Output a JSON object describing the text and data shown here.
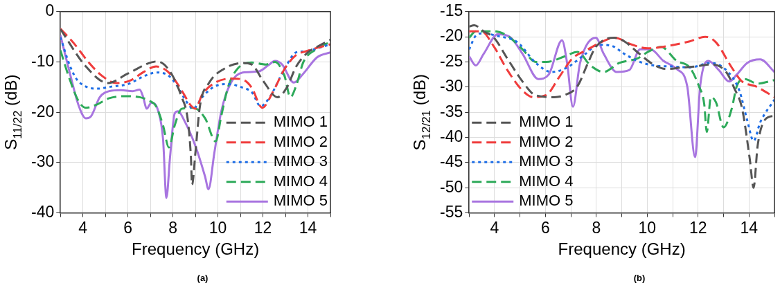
{
  "chart_data": [
    {
      "type": "line",
      "xlabel": "Frequency (GHz)",
      "ylabel": "S$_{11/22}$ (dB)",
      "xlim": [
        3,
        15
      ],
      "ylim": [
        -40,
        0
      ],
      "xticks": [
        {
          "value": 3,
          "label": null
        },
        4,
        {
          "value": 5,
          "label": null
        },
        6,
        {
          "value": 7,
          "label": null
        },
        8,
        {
          "value": 9,
          "label": null
        },
        10,
        {
          "value": 11,
          "label": null
        },
        12,
        {
          "value": 13,
          "label": null
        },
        14,
        {
          "value": 15,
          "label": null
        }
      ],
      "yticks": [
        -40,
        -30,
        -20,
        -10,
        0
      ],
      "grid": true,
      "legend": "bottom right",
      "annotations": [
        "(a)"
      ],
      "series": [
        {
          "name": "MIMO 1",
          "color": "#555555",
          "line_style": "dashed",
          "x": [
            3,
            4.13,
            5.12,
            6.0,
            7.3,
            7.87,
            8.39,
            8.65,
            8.8,
            8.85,
            9.0,
            9.2,
            9.6,
            10.26,
            11.1,
            11.5,
            12.0,
            12.65,
            13.06,
            13.48,
            14.0,
            14.4,
            15
          ],
          "values": [
            -3.5,
            -10.9,
            -14.2,
            -12.3,
            -9.9,
            -11.9,
            -17,
            -21.2,
            -29,
            -34.4,
            -28,
            -18.8,
            -14.2,
            -11.4,
            -10.2,
            -10.5,
            -13.7,
            -17,
            -15.1,
            -10.9,
            -8.1,
            -7,
            -5.6
          ]
        },
        {
          "name": "MIMO 2",
          "color": "#f03c3c",
          "line_style": "dashed",
          "x": [
            3,
            3.6,
            4.24,
            4.86,
            5.48,
            6.1,
            6.73,
            7.25,
            7.77,
            8.18,
            8.5,
            8.75,
            9.0,
            9.3,
            9.84,
            10.6,
            11.1,
            11.5,
            11.97,
            12.44,
            12.96,
            13.48,
            13.9,
            14.4,
            15
          ],
          "values": [
            -3.4,
            -6.3,
            -10,
            -12.8,
            -14.2,
            -13.7,
            -11.9,
            -10.9,
            -11.9,
            -14.2,
            -16.5,
            -18.4,
            -19.3,
            -16.5,
            -14.2,
            -13.3,
            -13.5,
            -15.1,
            -19.1,
            -16,
            -11.4,
            -8.6,
            -7.9,
            -7.2,
            -6.5
          ]
        },
        {
          "name": "MIMO 3",
          "color": "#1e6ee6",
          "line_style": "dotted",
          "x": [
            3,
            3.4,
            3.7,
            4.13,
            4.65,
            5.27,
            6.0,
            6.73,
            7.25,
            7.77,
            8.18,
            8.6,
            8.9,
            9.3,
            9.84,
            10.47,
            11.1,
            11.5,
            11.9,
            12.3,
            12.96,
            13.48,
            13.9,
            14.4,
            15
          ],
          "values": [
            -5.1,
            -10.5,
            -13.3,
            -14.9,
            -15.3,
            -14.9,
            -14.4,
            -12.8,
            -12.1,
            -12.6,
            -14.7,
            -17.9,
            -19.3,
            -17,
            -14.9,
            -14.4,
            -15.1,
            -16,
            -18.8,
            -17,
            -11.4,
            -8.1,
            -7.9,
            -7.3,
            -6.5
          ]
        },
        {
          "name": "MIMO 4",
          "color": "#2eaa5a",
          "line_style": "dashed",
          "x": [
            3,
            3.4,
            3.82,
            4.13,
            4.65,
            5.17,
            6.0,
            6.52,
            6.94,
            7.25,
            7.56,
            7.82,
            8.08,
            8.39,
            8.9,
            9.43,
            9.9,
            10.15,
            10.47,
            10.9,
            11.5,
            12.13,
            12.54,
            12.96,
            13.22,
            13.48,
            13.8,
            14.4,
            15
          ],
          "values": [
            -7.7,
            -13.3,
            -17.9,
            -19.1,
            -18.4,
            -17.2,
            -16.8,
            -17,
            -17.7,
            -18.8,
            -22.6,
            -27,
            -22.6,
            -19.3,
            -19.1,
            -21.2,
            -25.8,
            -20.7,
            -14.7,
            -11.2,
            -10.1,
            -10.5,
            -10,
            -12.8,
            -17,
            -14.7,
            -10,
            -7.4,
            -6
          ]
        },
        {
          "name": "MIMO 5",
          "color": "#a875e0",
          "line_style": "solid",
          "x": [
            3,
            3.4,
            3.82,
            4.13,
            4.34,
            4.75,
            5.17,
            5.69,
            6.21,
            6.52,
            6.68,
            6.83,
            7.04,
            7.35,
            7.56,
            7.71,
            7.87,
            8.08,
            8.23,
            8.5,
            9.0,
            9.43,
            9.58,
            9.84,
            10.15,
            10.57,
            11.1,
            11.8,
            12.23,
            12.54,
            12.85,
            13.37,
            13.8,
            14.4,
            15
          ],
          "values": [
            -4.7,
            -11.9,
            -18.8,
            -21.2,
            -20.9,
            -17,
            -15.8,
            -15.6,
            -15.8,
            -15.5,
            -17,
            -19.3,
            -18.1,
            -19.8,
            -25.3,
            -37,
            -29,
            -20.2,
            -19.8,
            -21.6,
            -26.7,
            -32.8,
            -35.3,
            -28.1,
            -19.8,
            -14.2,
            -12.1,
            -11.9,
            -10.7,
            -9.8,
            -10.5,
            -14.1,
            -12.3,
            -9.1,
            -8.1
          ]
        }
      ]
    },
    {
      "type": "line",
      "xlabel": "Frequency (GHz)",
      "ylabel": "S$_{12/21}$ (dB)",
      "xlim": [
        3,
        15
      ],
      "ylim": [
        -55,
        -15
      ],
      "xticks": [
        {
          "value": 3,
          "label": null
        },
        4,
        {
          "value": 5,
          "label": null
        },
        6,
        {
          "value": 7,
          "label": null
        },
        8,
        {
          "value": 9,
          "label": null
        },
        10,
        {
          "value": 11,
          "label": null
        },
        12,
        {
          "value": 13,
          "label": null
        },
        14,
        {
          "value": 15,
          "label": null
        }
      ],
      "yticks": [
        -55,
        -50,
        -45,
        -40,
        -35,
        -30,
        -25,
        -20,
        -15
      ],
      "grid": true,
      "legend": "bottom left",
      "annotations": [
        "(b)"
      ],
      "series": [
        {
          "name": "MIMO 1",
          "color": "#555555",
          "line_style": "dashed",
          "x": [
            3,
            3.2,
            3.57,
            3.98,
            4.5,
            5.1,
            5.6,
            6.34,
            6.75,
            7.26,
            7.67,
            7.98,
            8.7,
            9.1,
            9.6,
            10.24,
            10.75,
            11.37,
            11.88,
            12.5,
            13.1,
            13.42,
            13.73,
            14.03,
            14.18,
            14.34,
            14.64,
            15
          ],
          "values": [
            -18,
            -17.7,
            -18.9,
            -20.2,
            -24.3,
            -28.9,
            -31.6,
            -32,
            -31.6,
            -29.8,
            -25.2,
            -22,
            -20.2,
            -20.9,
            -23,
            -25.5,
            -26.4,
            -26.1,
            -25.9,
            -25.5,
            -27,
            -30.2,
            -34.3,
            -44.3,
            -50,
            -41.6,
            -36.4,
            -35.7
          ]
        },
        {
          "name": "MIMO 2",
          "color": "#f03c3c",
          "line_style": "dashed",
          "x": [
            3,
            3.47,
            3.98,
            4.5,
            5.1,
            5.52,
            6.03,
            6.54,
            7.06,
            7.67,
            8.18,
            8.7,
            9.42,
            10.03,
            10.85,
            11.67,
            12.29,
            12.7,
            13.32,
            13.73,
            14.24,
            15
          ],
          "values": [
            -18.9,
            -18.9,
            -22,
            -26.6,
            -30.7,
            -32,
            -31.6,
            -28,
            -24.3,
            -22.5,
            -21.1,
            -20.2,
            -21.6,
            -22.3,
            -21.8,
            -20.9,
            -20,
            -21.1,
            -26.1,
            -28.9,
            -29.8,
            -32
          ]
        },
        {
          "name": "MIMO 3",
          "color": "#1e6ee6",
          "line_style": "dotted",
          "x": [
            3,
            3.26,
            3.57,
            4.08,
            4.9,
            5.62,
            6.24,
            6.85,
            7.57,
            8.08,
            8.6,
            9.1,
            9.62,
            10.24,
            10.95,
            11.67,
            12.5,
            13.1,
            13.62,
            13.93,
            14.18,
            14.44,
            15
          ],
          "values": [
            -22.5,
            -19.8,
            -19.3,
            -19.8,
            -21.1,
            -25.2,
            -27,
            -26.1,
            -23.4,
            -21.6,
            -21.8,
            -23.4,
            -24.8,
            -25.7,
            -25.9,
            -26.1,
            -25.2,
            -26.6,
            -30.7,
            -36.6,
            -40.7,
            -37,
            -32.5
          ]
        },
        {
          "name": "MIMO 4",
          "color": "#2eaa5a",
          "line_style": "dashed",
          "x": [
            3,
            3.26,
            3.98,
            4.5,
            5.1,
            5.62,
            6.03,
            6.75,
            7.26,
            7.77,
            8.28,
            8.9,
            9.62,
            10.03,
            10.54,
            11.16,
            11.67,
            12.03,
            12.24,
            12.34,
            12.5,
            12.7,
            13.0,
            13.32,
            13.52,
            13.83,
            14.34,
            15
          ],
          "values": [
            -20.2,
            -18.9,
            -18.9,
            -19.8,
            -22.5,
            -25,
            -25,
            -23.9,
            -23,
            -25.7,
            -27,
            -25.2,
            -24.3,
            -23,
            -22,
            -24.8,
            -26.1,
            -29.8,
            -33.4,
            -38.9,
            -32,
            -33,
            -38,
            -34.3,
            -29.8,
            -28.4,
            -29.3,
            -28.6
          ]
        },
        {
          "name": "MIMO 5",
          "color": "#a875e0",
          "line_style": "solid",
          "x": [
            3,
            3.26,
            3.57,
            4.13,
            4.6,
            5.1,
            5.72,
            6.13,
            6.65,
            6.85,
            7.08,
            7.36,
            7.98,
            8.29,
            8.8,
            9.3,
            9.72,
            10.13,
            10.64,
            11.16,
            11.57,
            11.88,
            12.08,
            12.4,
            12.81,
            13.22,
            13.52,
            13.93,
            14.44,
            15
          ],
          "values": [
            -23.9,
            -25.7,
            -23.4,
            -19.5,
            -20,
            -23.4,
            -28.4,
            -27.5,
            -20.7,
            -25.2,
            -33.9,
            -25.2,
            -20.2,
            -23.4,
            -27,
            -26.6,
            -22.5,
            -22.5,
            -24.8,
            -26.4,
            -29.8,
            -43.9,
            -29.8,
            -24.8,
            -26.6,
            -28.9,
            -27.5,
            -25.2,
            -24.5,
            -27
          ]
        }
      ]
    }
  ]
}
